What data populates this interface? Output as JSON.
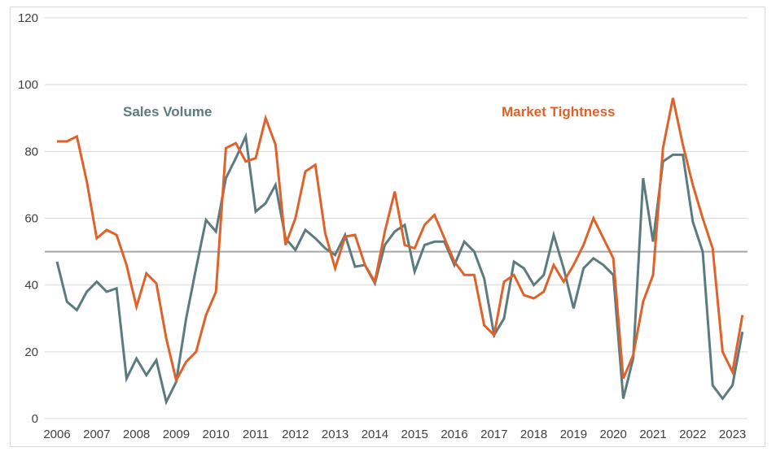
{
  "chart_data": {
    "type": "line",
    "title": "",
    "xlabel": "",
    "ylabel": "",
    "ylim": [
      0,
      120
    ],
    "yticks": [
      "0",
      "20",
      "40",
      "60",
      "80",
      "100",
      "120"
    ],
    "xticks": [
      "2006",
      "2007",
      "2008",
      "2009",
      "2010",
      "2011",
      "2012",
      "2013",
      "2014",
      "2015",
      "2016",
      "2017",
      "2018",
      "2019",
      "2020",
      "2021",
      "2022",
      "2023"
    ],
    "x_frequency": "quarterly, 2006 Q1 to 2023 Q2",
    "grid": true,
    "reference_line": 50,
    "legend": "inline labels",
    "series": [
      {
        "name": "Sales Volume",
        "color": "#5b7b7e",
        "values": [
          47,
          35,
          32.5,
          38,
          41,
          38,
          39,
          12,
          18,
          13,
          17.5,
          5,
          11,
          30,
          45,
          59.5,
          56,
          72,
          78,
          84.5,
          62,
          64.5,
          70,
          54,
          50.5,
          56.5,
          54,
          51,
          49,
          55,
          45.5,
          46,
          40.5,
          52,
          56,
          58,
          44,
          52,
          53,
          53,
          46,
          53,
          50,
          42,
          25,
          30,
          47,
          45,
          40,
          43,
          55,
          45,
          33,
          45,
          48,
          46,
          43,
          6,
          18,
          72,
          53,
          77,
          79,
          79,
          59,
          50,
          10,
          6,
          10,
          26
        ]
      },
      {
        "name": "Market Tightness",
        "color": "#e0622a",
        "values": [
          83,
          83,
          84.5,
          71,
          54,
          56.5,
          55,
          46,
          33.5,
          43.5,
          40.5,
          24,
          11.5,
          17,
          20,
          31,
          38,
          81,
          82.5,
          77,
          78,
          90,
          82,
          52,
          60,
          74,
          76,
          55.5,
          45,
          54.5,
          55,
          46,
          41,
          56,
          68,
          52,
          51,
          58,
          61,
          54,
          47,
          43,
          43,
          28,
          25,
          41,
          43,
          37,
          36,
          38,
          46,
          41,
          46,
          52,
          60,
          54,
          48,
          12,
          19,
          35,
          43,
          81,
          96,
          82,
          70,
          60,
          51,
          20,
          14,
          31
        ]
      }
    ]
  },
  "colors": {
    "grid": "#d9d9d9",
    "reference": "#a6a6a6",
    "tick_text": "#404040"
  }
}
